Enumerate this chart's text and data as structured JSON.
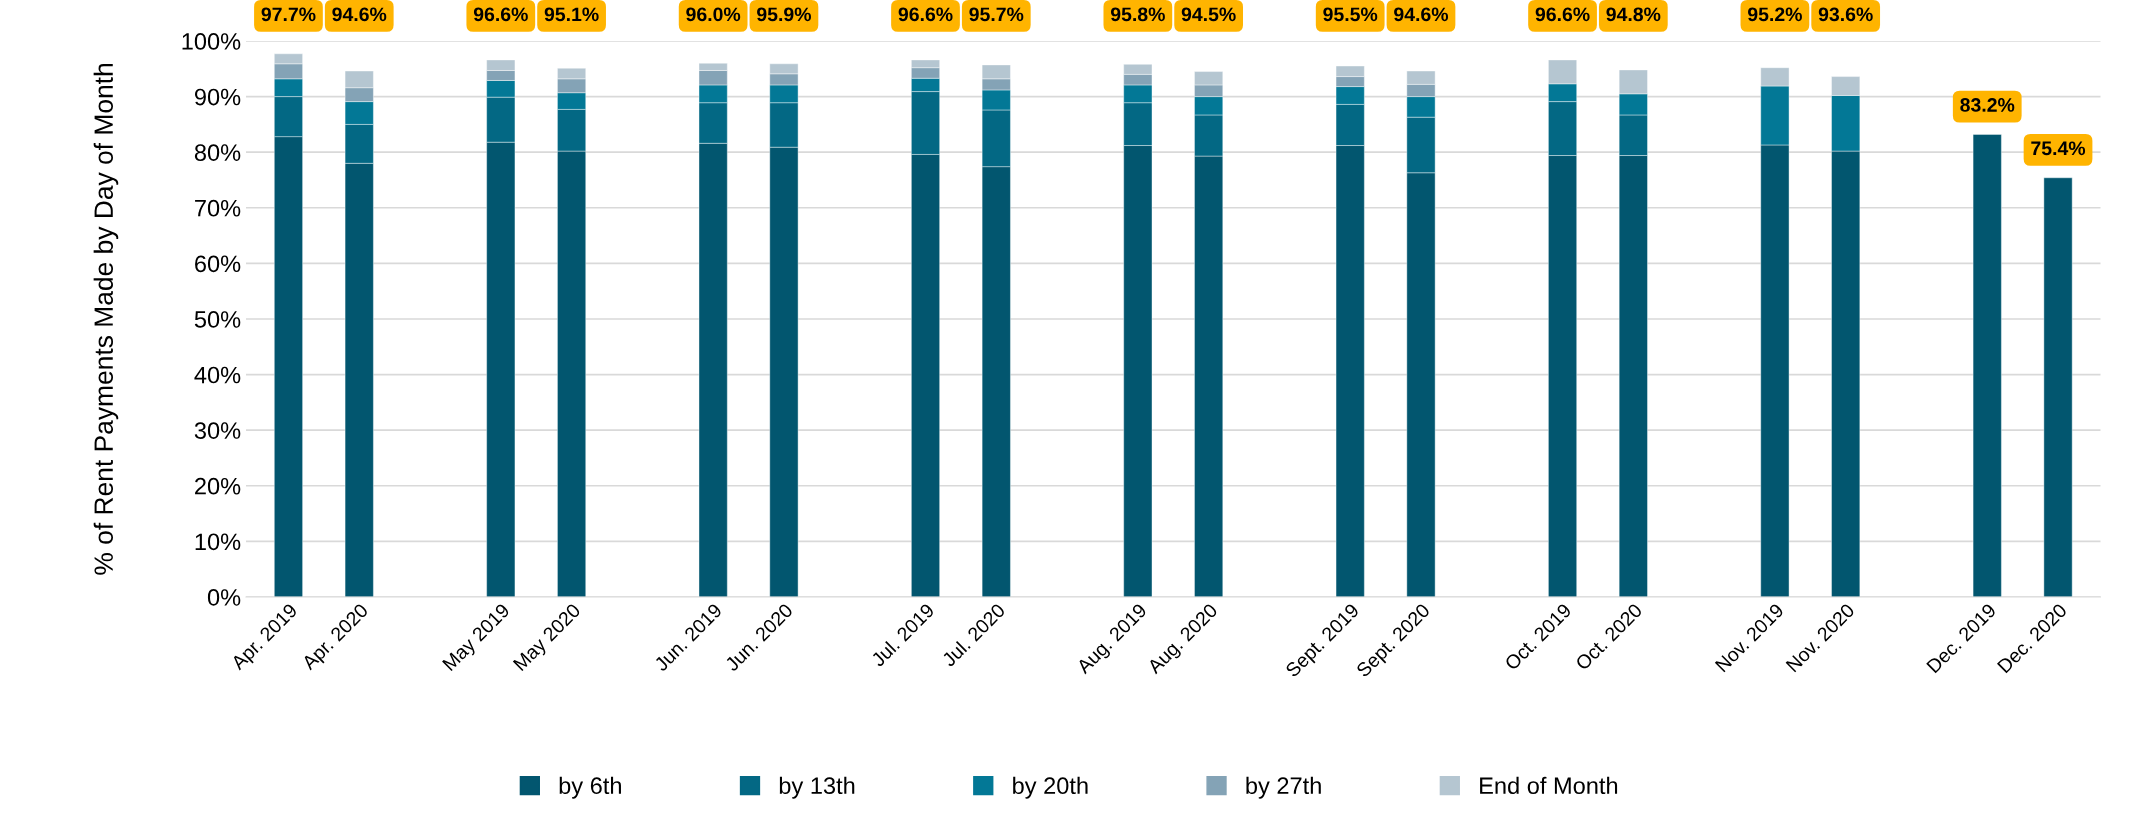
{
  "chart_data": {
    "type": "bar",
    "stacked": true,
    "ylabel": "% of Rent Payments Made by Day of Month",
    "categories": [
      "Apr. 2019",
      "Apr. 2020",
      null,
      "May 2019",
      "May 2020",
      null,
      "Jun. 2019",
      "Jun. 2020",
      null,
      "Jul. 2019",
      "Jul. 2020",
      null,
      "Aug. 2019",
      "Aug. 2020",
      null,
      "Sept. 2019",
      "Sept. 2020",
      null,
      "Oct. 2019",
      "Oct. 2020",
      null,
      "Nov. 2019",
      "Nov. 2020",
      null,
      "Dec. 2019",
      "Dec. 2020"
    ],
    "series": [
      {
        "name": "by 6th",
        "color": "#02566f",
        "values": [
          82.8,
          78.0,
          null,
          81.8,
          80.2,
          null,
          81.6,
          80.9,
          null,
          79.6,
          77.4,
          null,
          81.2,
          79.3,
          null,
          81.2,
          76.3,
          null,
          79.4,
          79.4,
          null,
          81.3,
          80.2,
          null,
          83.2,
          75.4
        ]
      },
      {
        "name": "by 13th",
        "color": "#036884",
        "values": [
          7.2,
          7.0,
          null,
          8.1,
          7.5,
          null,
          7.3,
          8.0,
          null,
          11.3,
          10.2,
          null,
          7.7,
          7.4,
          null,
          7.4,
          10.0,
          null,
          9.7,
          7.3,
          null,
          null,
          null,
          null,
          null,
          null
        ]
      },
      {
        "name": "by 20th",
        "color": "#037896",
        "values": [
          3.2,
          4.1,
          null,
          3.0,
          3.0,
          null,
          3.2,
          3.2,
          null,
          2.4,
          3.6,
          null,
          3.2,
          3.3,
          null,
          3.2,
          3.7,
          null,
          3.2,
          3.8,
          null,
          10.6,
          10.0,
          null,
          null,
          null
        ]
      },
      {
        "name": "by 27th",
        "color": "#84a3b6",
        "values": [
          2.7,
          2.5,
          null,
          1.8,
          2.5,
          null,
          2.6,
          2.0,
          null,
          1.9,
          2.0,
          null,
          1.9,
          2.1,
          null,
          1.8,
          2.2,
          null,
          null,
          null,
          null,
          null,
          null,
          null,
          null,
          null
        ]
      },
      {
        "name": "End of Month",
        "color": "#b5c6d1",
        "values": [
          1.8,
          3.0,
          null,
          1.9,
          1.9,
          null,
          1.3,
          1.8,
          null,
          1.4,
          2.5,
          null,
          1.8,
          2.4,
          null,
          1.9,
          2.4,
          null,
          4.3,
          4.3,
          null,
          3.3,
          3.4,
          null,
          null,
          null
        ]
      }
    ],
    "totals": [
      "97.7%",
      "94.6%",
      null,
      "96.6%",
      "95.1%",
      null,
      "96.0%",
      "95.9%",
      null,
      "96.6%",
      "95.7%",
      null,
      "95.8%",
      "94.5%",
      null,
      "95.5%",
      "94.6%",
      null,
      "96.6%",
      "94.8%",
      null,
      "95.2%",
      "93.6%",
      null,
      "83.2%",
      "75.4%"
    ],
    "ylim": [
      0,
      100
    ],
    "yticks": [
      {
        "value": 0,
        "label": "0%"
      },
      {
        "value": 10,
        "label": "10%"
      },
      {
        "value": 20,
        "label": "20%"
      },
      {
        "value": 30,
        "label": "30%"
      },
      {
        "value": 40,
        "label": "40%"
      },
      {
        "value": 50,
        "label": "50%"
      },
      {
        "value": 60,
        "label": "60%"
      },
      {
        "value": 70,
        "label": "70%"
      },
      {
        "value": 80,
        "label": "80%"
      },
      {
        "value": 90,
        "label": "90%"
      },
      {
        "value": 100,
        "label": "100%"
      }
    ],
    "grid": "y",
    "legend": "bottom"
  }
}
